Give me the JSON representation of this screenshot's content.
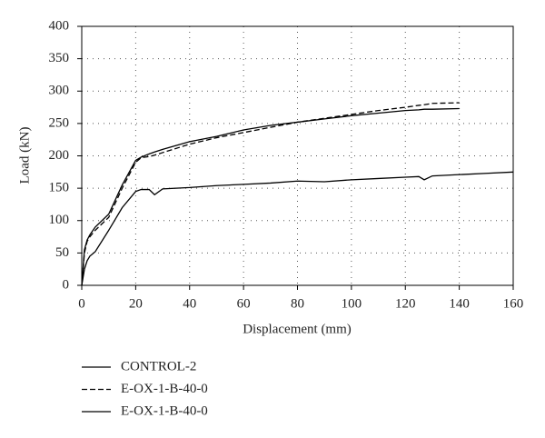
{
  "chart_data": {
    "type": "line",
    "xlabel": "Displacement (mm)",
    "ylabel": "Load (kN)",
    "x": [
      0,
      1,
      2,
      3,
      5,
      10,
      15,
      20,
      22,
      25,
      27,
      30,
      40,
      50,
      60,
      70,
      80,
      90,
      100,
      110,
      120,
      125,
      127,
      130,
      140,
      150,
      160
    ],
    "series": [
      {
        "name": "CONTROL-2",
        "color": "#000000",
        "style": "solid",
        "values": [
          0,
          25,
          38,
          45,
          52,
          85,
          120,
          145,
          148,
          148,
          140,
          149,
          151,
          154,
          156,
          158,
          161,
          160,
          163,
          165,
          167,
          168,
          163,
          169,
          171,
          173,
          175
        ]
      },
      {
        "name": "E-OX-1-B-40-0",
        "color": "#000000",
        "style": "dashed",
        "values": [
          0,
          50,
          68,
          75,
          85,
          105,
          150,
          190,
          197,
          199,
          201,
          205,
          218,
          228,
          236,
          244,
          252,
          258,
          264,
          270,
          275,
          278,
          279,
          281,
          282,
          null,
          null
        ]
      },
      {
        "name": "E-OX-1-B-40-0",
        "color": "#000000",
        "style": "solid",
        "values": [
          0,
          55,
          70,
          78,
          90,
          110,
          155,
          193,
          198,
          203,
          206,
          210,
          222,
          230,
          240,
          247,
          252,
          257,
          262,
          266,
          270,
          271,
          272,
          272,
          273,
          null,
          null
        ]
      }
    ],
    "xlim": [
      0,
      160
    ],
    "xticks": [
      0,
      20,
      40,
      60,
      80,
      100,
      120,
      140,
      160
    ],
    "ylim": [
      0,
      400
    ],
    "yticks": [
      0,
      50,
      100,
      150,
      200,
      250,
      300,
      350,
      400
    ],
    "grid": true,
    "legend": "below"
  }
}
